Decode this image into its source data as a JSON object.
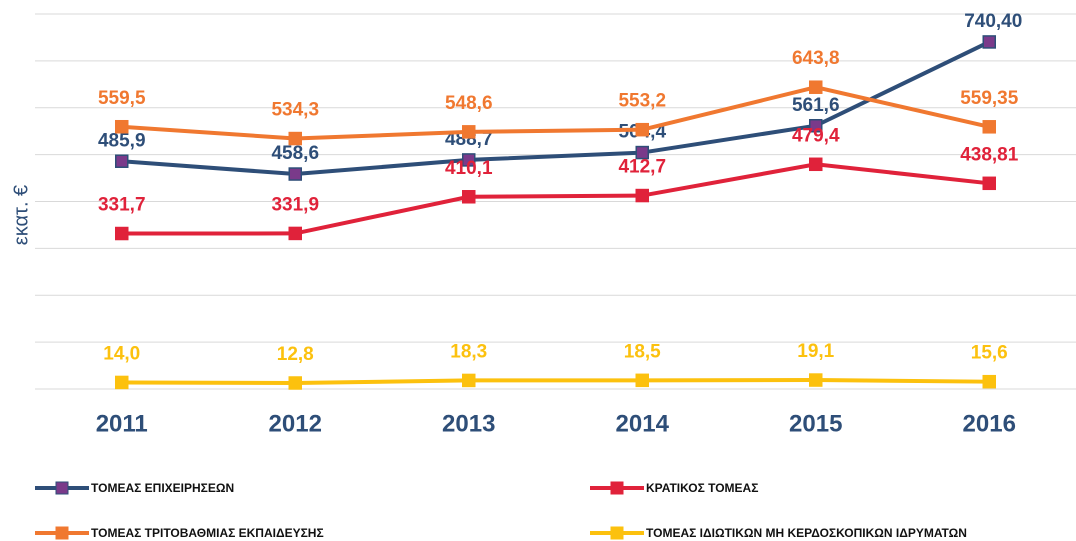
{
  "chart_data": {
    "type": "line",
    "y_label": "εκατ. €",
    "categories": [
      "2011",
      "2012",
      "2013",
      "2014",
      "2015",
      "2016"
    ],
    "ylim": [
      0,
      800
    ],
    "yticks": [
      0,
      100,
      200,
      300,
      400,
      500,
      600,
      700,
      800
    ],
    "grid": true,
    "series": [
      {
        "name": "ΤΟΜΕΑΣ ΕΠΙΧΕΙΡΗΣΕΩΝ",
        "color": "#2e4e78",
        "values": [
          485.9,
          458.6,
          488.7,
          504.4,
          561.6,
          740.4
        ],
        "value_labels": [
          "485,9",
          "458,6",
          "488,7",
          "504,4",
          "561,6",
          "740,40"
        ]
      },
      {
        "name": "ΚΡΑΤΙΚΟΣ ΤΟΜΕΑΣ",
        "color": "#e0223a",
        "values": [
          331.7,
          331.9,
          410.1,
          412.7,
          479.4,
          438.81
        ],
        "value_labels": [
          "331,7",
          "331,9",
          "410,1",
          "412,7",
          "479,4",
          "438,81"
        ]
      },
      {
        "name": "ΤΟΜΕΑΣ ΤΡΙΤΟΒΑΘΜΙΑΣ ΕΚΠΑΙΔΕΥΣΗΣ",
        "color": "#f07830",
        "values": [
          559.5,
          534.3,
          548.6,
          553.2,
          643.8,
          559.35
        ],
        "value_labels": [
          "559,5",
          "534,3",
          "548,6",
          "553,2",
          "643,8",
          "559,35"
        ]
      },
      {
        "name": "ΤΟΜΕΑΣ ΙΔΙΩΤΙΚΩΝ ΜΗ ΚΕΡΔΟΣΚΟΠΙΚΩΝ ΙΔΡΥΜΑΤΩΝ",
        "color": "#fcc10e",
        "values": [
          14.0,
          12.8,
          18.3,
          18.5,
          19.1,
          15.6
        ],
        "value_labels": [
          "14,0",
          "12,8",
          "18,3",
          "18,5",
          "19,1",
          "15,6"
        ]
      }
    ]
  }
}
